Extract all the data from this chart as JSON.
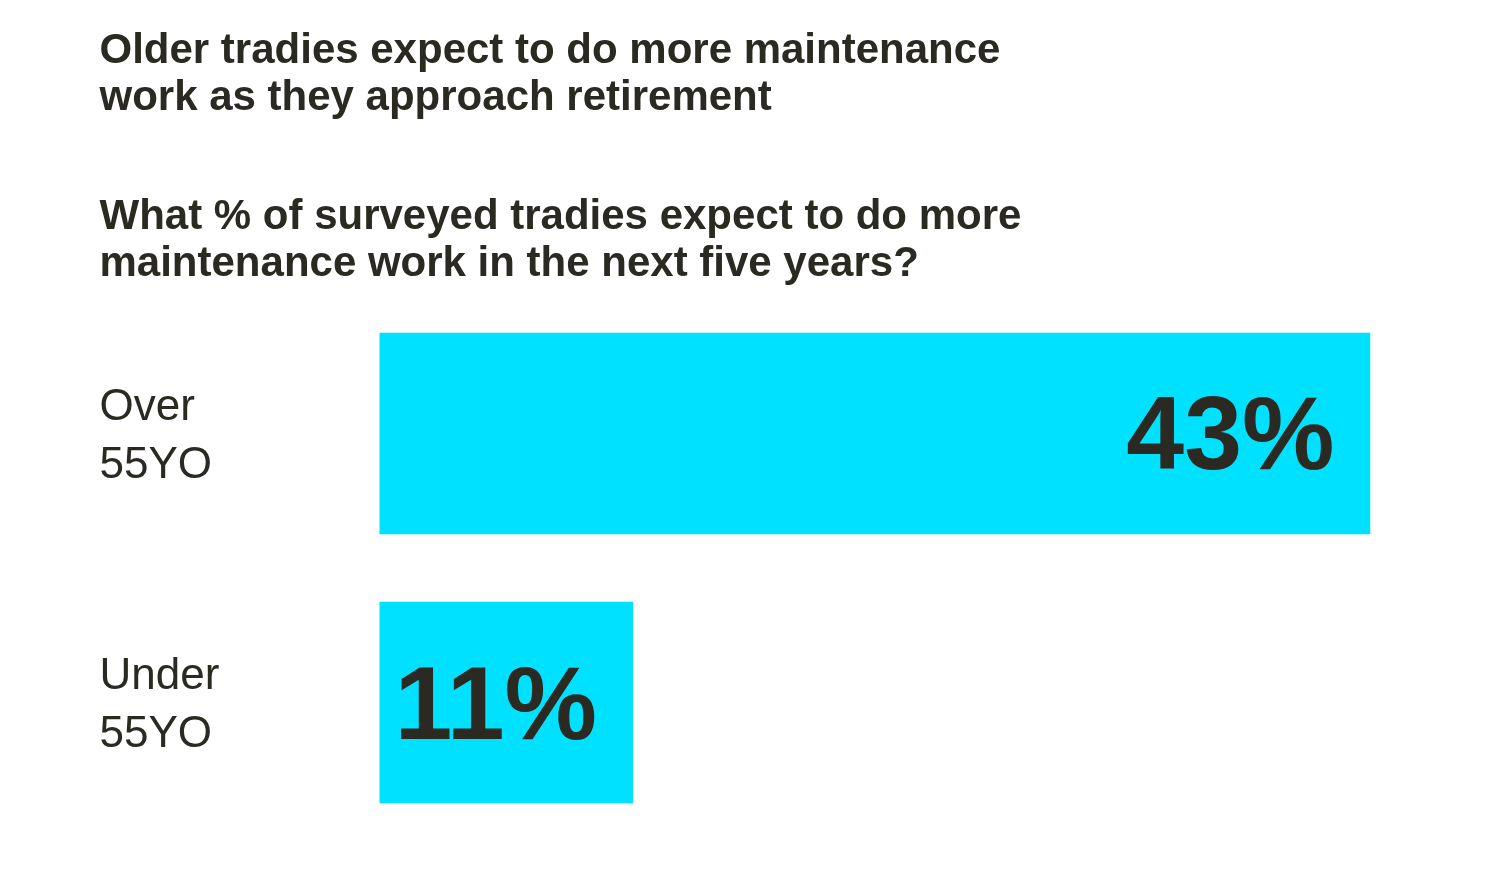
{
  "chart_data": {
    "type": "bar",
    "orientation": "horizontal",
    "title": "Older tradies expect to do more maintenance\nwork as they approach retirement",
    "subtitle": "What % of surveyed tradies expect to do more\nmaintenance work in the next five years?",
    "categories": [
      "Over\n55YO",
      "Under\n55YO"
    ],
    "values": [
      43,
      11
    ],
    "color": "#00e1ff",
    "value_labels": [
      "43%",
      "11%"
    ],
    "grid": false
  }
}
